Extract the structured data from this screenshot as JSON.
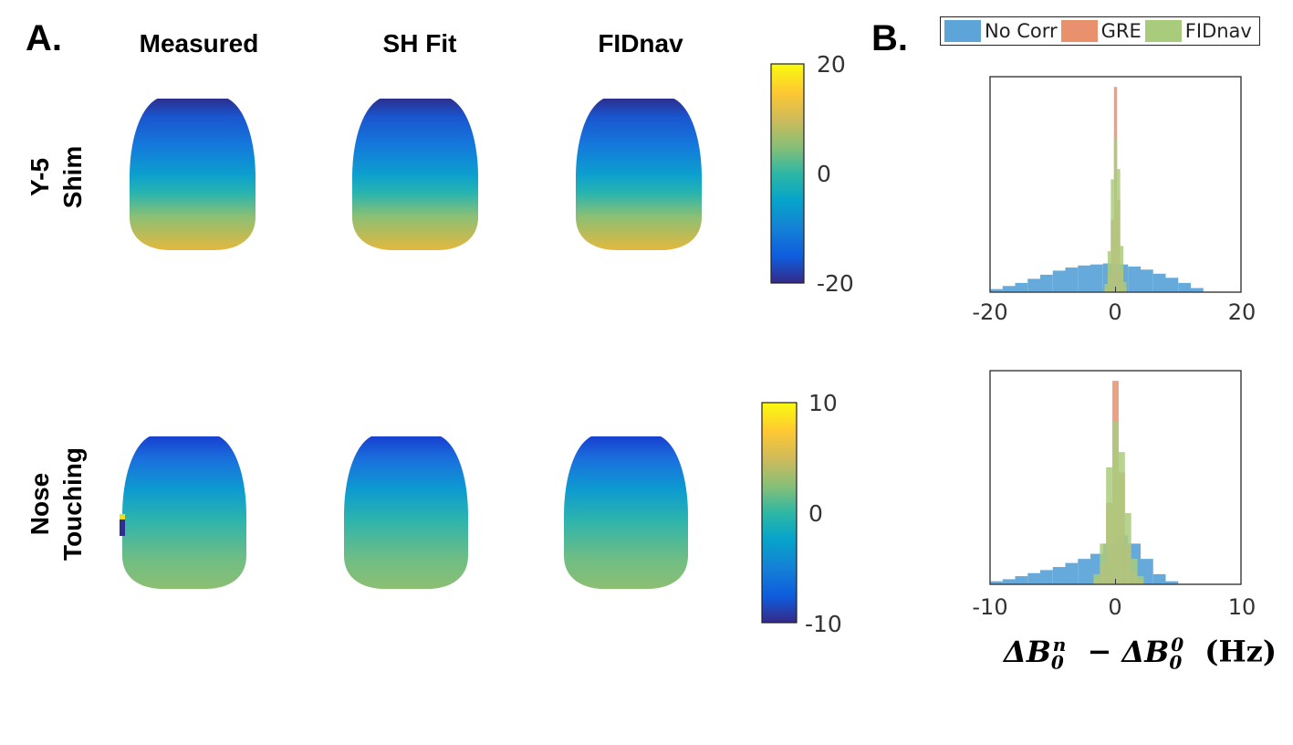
{
  "panel_a": {
    "label": "A.",
    "column_titles": [
      "Measured",
      "SH Fit",
      "FIDnav"
    ],
    "rows": [
      {
        "label_lines": [
          "Y-5",
          "Shim"
        ],
        "colorbar": {
          "max_label": "20",
          "mid_label": "0",
          "min_label": "-20",
          "min": -20,
          "max": 20
        }
      },
      {
        "label_lines": [
          "Nose",
          "Touching"
        ],
        "colorbar": {
          "max_label": "10",
          "mid_label": "0",
          "min_label": "-10",
          "min": -10,
          "max": 10
        }
      }
    ]
  },
  "panel_b": {
    "label": "B.",
    "legend": [
      {
        "name": "No Corr",
        "color": "#5da5d8"
      },
      {
        "name": "GRE",
        "color": "#e8916c"
      },
      {
        "name": "FIDnav",
        "color": "#a9cc7c"
      }
    ],
    "xlabel": "ΔB0n − ΔB00 (Hz)"
  },
  "chart_data": [
    {
      "type": "heatmap",
      "title": "Y-5 Shim",
      "columns": [
        "Measured",
        "SH Fit",
        "FIDnav"
      ],
      "colorbar_range": [
        -20,
        20
      ],
      "description_values": {
        "top_value": -18,
        "bottom_value": 12
      }
    },
    {
      "type": "heatmap",
      "title": "Nose Touching",
      "columns": [
        "Measured",
        "SH Fit",
        "FIDnav"
      ],
      "colorbar_range": [
        -10,
        10
      ],
      "description_values": {
        "top_value": -7,
        "bottom_value": 3
      }
    },
    {
      "type": "bar",
      "xlim": [
        -20,
        20
      ],
      "xticks": [
        "-20",
        "0",
        "20"
      ],
      "series": [
        {
          "name": "No Corr",
          "color": "#5da5d8",
          "x": [
            -19,
            -17,
            -15,
            -13,
            -11,
            -9,
            -7,
            -5,
            -3,
            -1,
            1,
            3,
            5,
            7,
            9,
            11,
            13
          ],
          "values": [
            3,
            6,
            9,
            13,
            17,
            21,
            24,
            26,
            27,
            28,
            27,
            25,
            22,
            18,
            14,
            9,
            4
          ]
        },
        {
          "name": "GRE",
          "color": "#e8916c",
          "x": [
            -1.5,
            -1,
            -0.5,
            0,
            0.5,
            1,
            1.5
          ],
          "values": [
            4,
            18,
            70,
            200,
            90,
            22,
            5
          ]
        },
        {
          "name": "FIDnav",
          "color": "#a9cc7c",
          "x": [
            -1.5,
            -1,
            -0.5,
            0,
            0.5,
            1,
            1.5
          ],
          "values": [
            8,
            40,
            110,
            150,
            120,
            45,
            10
          ]
        }
      ]
    },
    {
      "type": "bar",
      "xlim": [
        -10,
        10
      ],
      "xticks": [
        "-10",
        "0",
        "10"
      ],
      "series": [
        {
          "name": "No Corr",
          "color": "#5da5d8",
          "x": [
            -9.5,
            -8.5,
            -7.5,
            -6.5,
            -5.5,
            -4.5,
            -3.5,
            -2.5,
            -1.5,
            -0.5,
            0.5,
            1.5,
            2.5,
            3.5,
            4.5
          ],
          "values": [
            3,
            5,
            8,
            11,
            14,
            17,
            21,
            25,
            30,
            40,
            48,
            40,
            25,
            10,
            3
          ]
        },
        {
          "name": "GRE",
          "color": "#e8916c",
          "x": [
            -1.5,
            -1,
            -0.5,
            0,
            0.5,
            1,
            1.5,
            2
          ],
          "values": [
            5,
            20,
            80,
            200,
            110,
            40,
            12,
            4
          ]
        },
        {
          "name": "FIDnav",
          "color": "#a9cc7c",
          "x": [
            -1.5,
            -1,
            -0.5,
            0,
            0.5,
            1,
            1.5,
            2
          ],
          "values": [
            10,
            40,
            115,
            160,
            130,
            70,
            25,
            8
          ]
        }
      ]
    }
  ]
}
